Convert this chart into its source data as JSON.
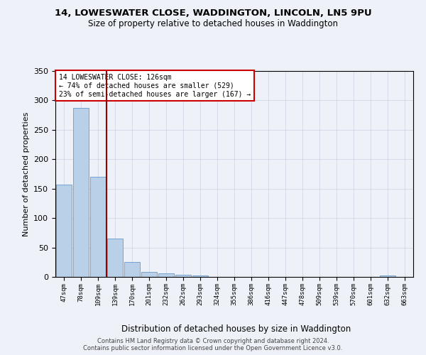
{
  "title_line1": "14, LOWESWATER CLOSE, WADDINGTON, LINCOLN, LN5 9PU",
  "title_line2": "Size of property relative to detached houses in Waddington",
  "xlabel": "Distribution of detached houses by size in Waddington",
  "ylabel": "Number of detached properties",
  "annotation_line1": "14 LOWESWATER CLOSE: 126sqm",
  "annotation_line2": "← 74% of detached houses are smaller (529)",
  "annotation_line3": "23% of semi-detached houses are larger (167) →",
  "footer1": "Contains HM Land Registry data © Crown copyright and database right 2024.",
  "footer2": "Contains public sector information licensed under the Open Government Licence v3.0.",
  "bin_labels": [
    "47sqm",
    "78sqm",
    "109sqm",
    "139sqm",
    "170sqm",
    "201sqm",
    "232sqm",
    "262sqm",
    "293sqm",
    "324sqm",
    "355sqm",
    "386sqm",
    "416sqm",
    "447sqm",
    "478sqm",
    "509sqm",
    "539sqm",
    "570sqm",
    "601sqm",
    "632sqm",
    "663sqm"
  ],
  "bar_heights": [
    157,
    287,
    170,
    65,
    25,
    9,
    6,
    4,
    3,
    0,
    0,
    0,
    0,
    0,
    0,
    0,
    0,
    0,
    0,
    3,
    0
  ],
  "bar_color": "#b8d0e8",
  "bar_edge_color": "#6699cc",
  "vline_color": "#990000",
  "annotation_box_color": "#ffffff",
  "annotation_box_edge_color": "#cc0000",
  "bg_color": "#eef2f8",
  "grid_color": "#d0d8e8",
  "ylim": [
    0,
    350
  ],
  "yticks": [
    0,
    50,
    100,
    150,
    200,
    250,
    300,
    350
  ],
  "vline_pos": 2.5
}
